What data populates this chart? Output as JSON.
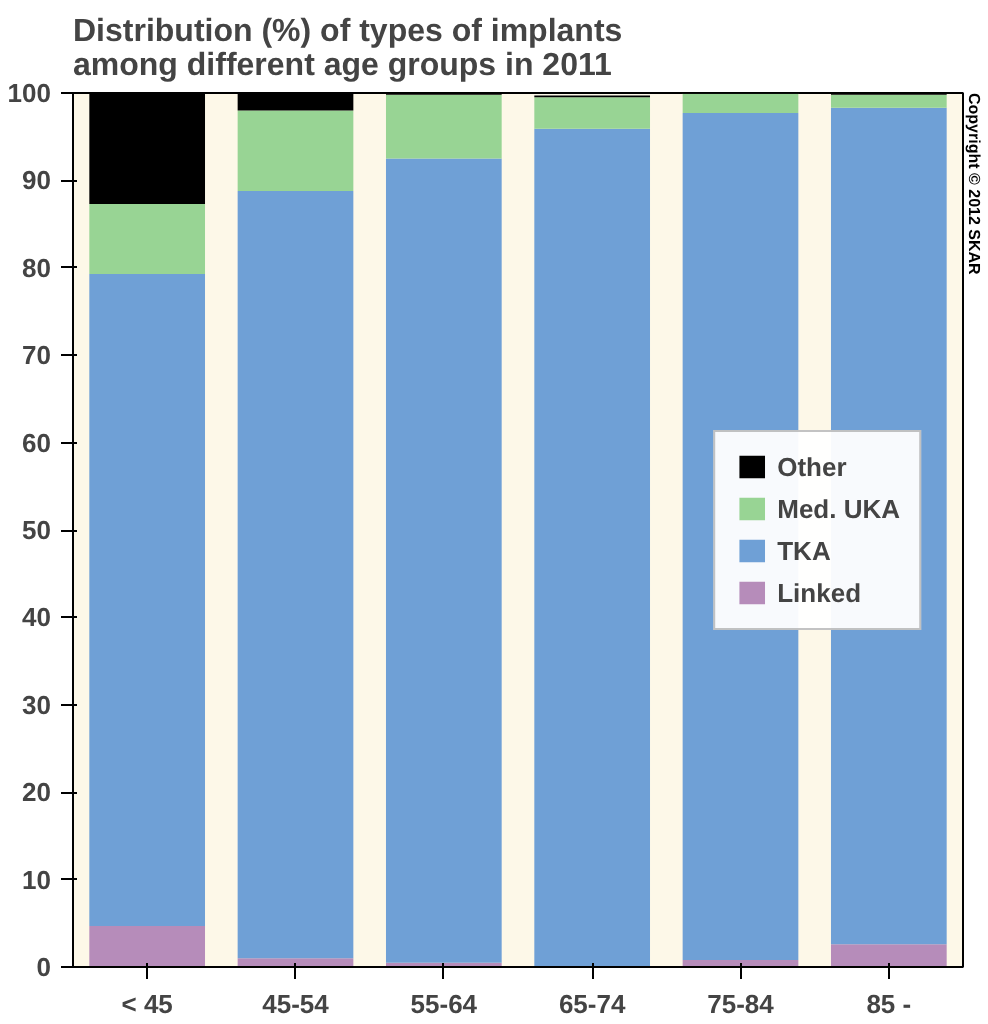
{
  "chart_data": {
    "type": "bar",
    "title": "Distribution (%) of types of implants among different age groups in 2011",
    "stacked": true,
    "categories": [
      "< 45",
      "45-54",
      "55-64",
      "65-74",
      "75-84",
      "85 -"
    ],
    "series": [
      {
        "name": "Linked",
        "color": "#b68cba",
        "values": [
          4.7,
          1.0,
          0.5,
          null,
          0.8,
          2.6
        ]
      },
      {
        "name": "TKA",
        "color": "#6fa0d6",
        "values": [
          74.6,
          87.8,
          92.0,
          95.9,
          96.9,
          95.7
        ]
      },
      {
        "name": "Med. UKA",
        "color": "#98d494",
        "values": [
          8.0,
          9.2,
          7.3,
          3.6,
          2.2,
          1.5
        ]
      },
      {
        "name": "Other",
        "color": "#000000",
        "values": [
          12.7,
          2.0,
          0.2,
          0.2,
          0.1,
          0.2
        ]
      }
    ],
    "ylim": [
      0,
      100
    ],
    "yticks": [
      0,
      10,
      20,
      30,
      40,
      50,
      60,
      70,
      80,
      90,
      100
    ],
    "grid": false,
    "legend": "right",
    "annotations": [
      "Copyright © 2012 SKAR"
    ]
  }
}
